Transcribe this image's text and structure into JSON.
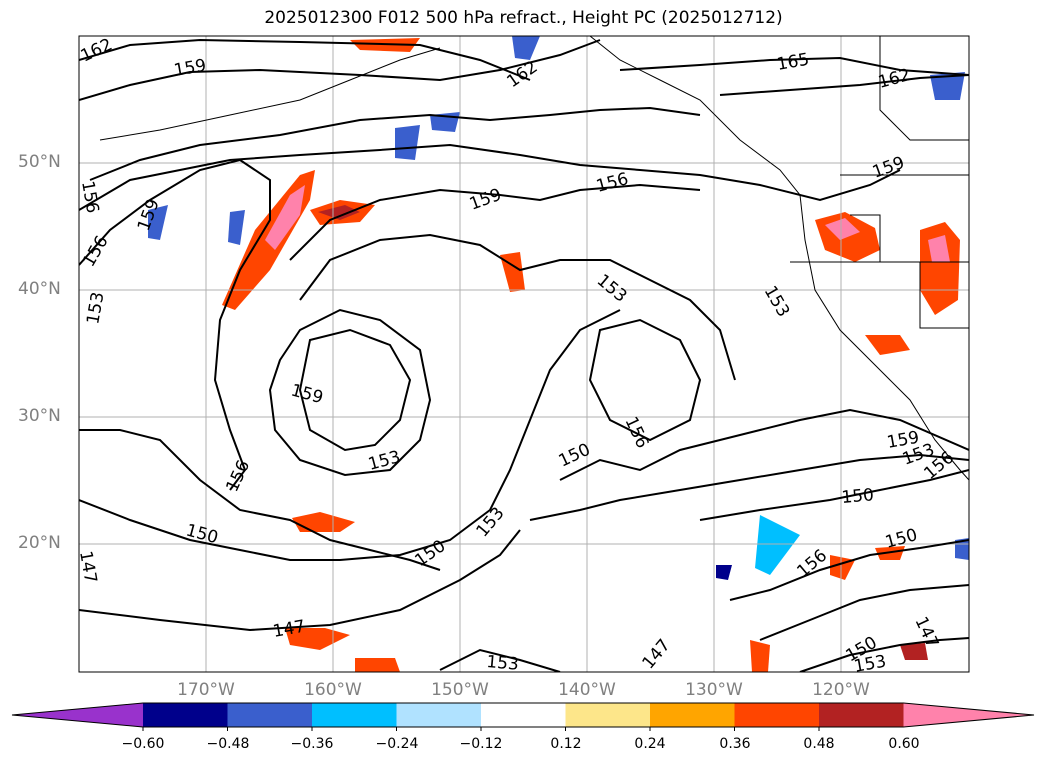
{
  "title": "2025012300 F012 500 hPa refract., Height PC (2025012712)",
  "lat_labels": [
    "50°N",
    "40°N",
    "30°N",
    "20°N"
  ],
  "lon_labels": [
    "170°W",
    "160°W",
    "150°W",
    "140°W",
    "130°W",
    "120°W"
  ],
  "contour_labels": [
    "162",
    "159",
    "162",
    "165",
    "162",
    "156",
    "159",
    "156",
    "156",
    "153",
    "159",
    "153",
    "153",
    "159",
    "159",
    "156",
    "156",
    "150",
    "150",
    "153",
    "150",
    "147",
    "147",
    "153",
    "147",
    "150",
    "153",
    "150",
    "150",
    "156",
    "153",
    "159",
    "153",
    "156",
    "147"
  ],
  "colorbar": {
    "ticks": [
      "−0.60",
      "−0.48",
      "−0.36",
      "−0.24",
      "−0.12",
      "0.12",
      "0.24",
      "0.36",
      "0.48",
      "0.60"
    ],
    "colors": [
      "#9932cc",
      "#00008b",
      "#3a5fcd",
      "#00bfff",
      "#b0e2ff",
      "#ffffff",
      "#fde68a",
      "#ffa500",
      "#ff4500",
      "#b22222",
      "#ff82ab"
    ]
  },
  "colors": {
    "contour": "#000000",
    "grid": "#b0b0b0",
    "coast": "#000000"
  }
}
